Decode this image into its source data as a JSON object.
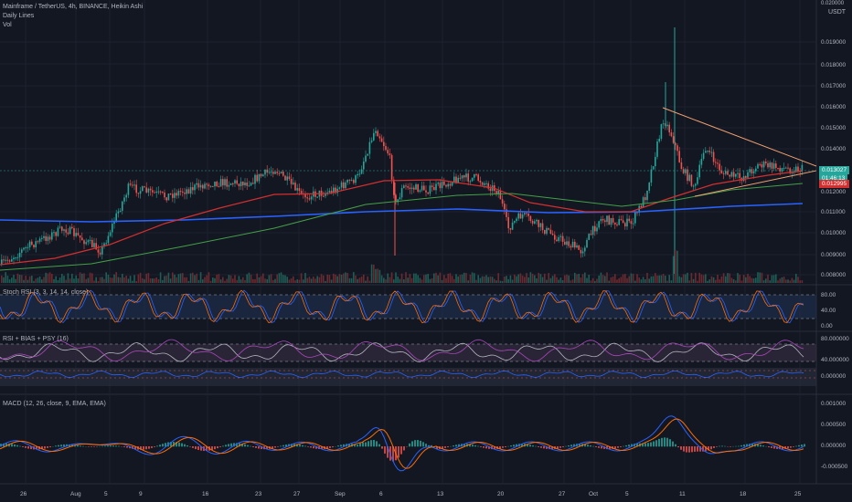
{
  "header": {
    "symbol_line": "Mainframe / TetherUS, 4h, BINANCE, Heikin Ashi",
    "daily_lines": "Daily Lines",
    "vol": "Vol",
    "currency": "USDT"
  },
  "indicators": {
    "stoch": "Stoch RSI (3, 3, 14, 14, close)",
    "rsi": "RSI + BIAS + PSY (16)",
    "macd": "MACD (12, 26, close, 9, EMA, EMA)"
  },
  "price_axis": [
    "0.019000",
    "0.018000",
    "0.017000",
    "0.016000",
    "0.015000",
    "0.014000",
    "0.011000",
    "0.010000",
    "0.009000",
    "0.008000"
  ],
  "price_tags": {
    "last": "0.013027",
    "sub": "01:46:13",
    "level": "0.012995",
    "level2": "0.012000",
    "top": "0.020000"
  },
  "stoch_axis": [
    "80.00",
    "40.00",
    "0.00"
  ],
  "rsi_axis": [
    "80.000000",
    "40.000000",
    "0.000000"
  ],
  "macd_axis": [
    "0.001000",
    "0.000500",
    "0.000000",
    "-0.000500"
  ],
  "time_axis": [
    "26",
    "Aug",
    "5",
    "9",
    "16",
    "23",
    "27",
    "Sep",
    "6",
    "13",
    "20",
    "27",
    "Oct",
    "5",
    "11",
    "18",
    "25"
  ],
  "colors": {
    "bg": "#131722",
    "up": "#26a69a",
    "down": "#ef5350",
    "blue_ma": "#2962ff",
    "red_ma": "#d32f2f",
    "green_ma": "#43a047",
    "trend": "#f0a070"
  }
}
